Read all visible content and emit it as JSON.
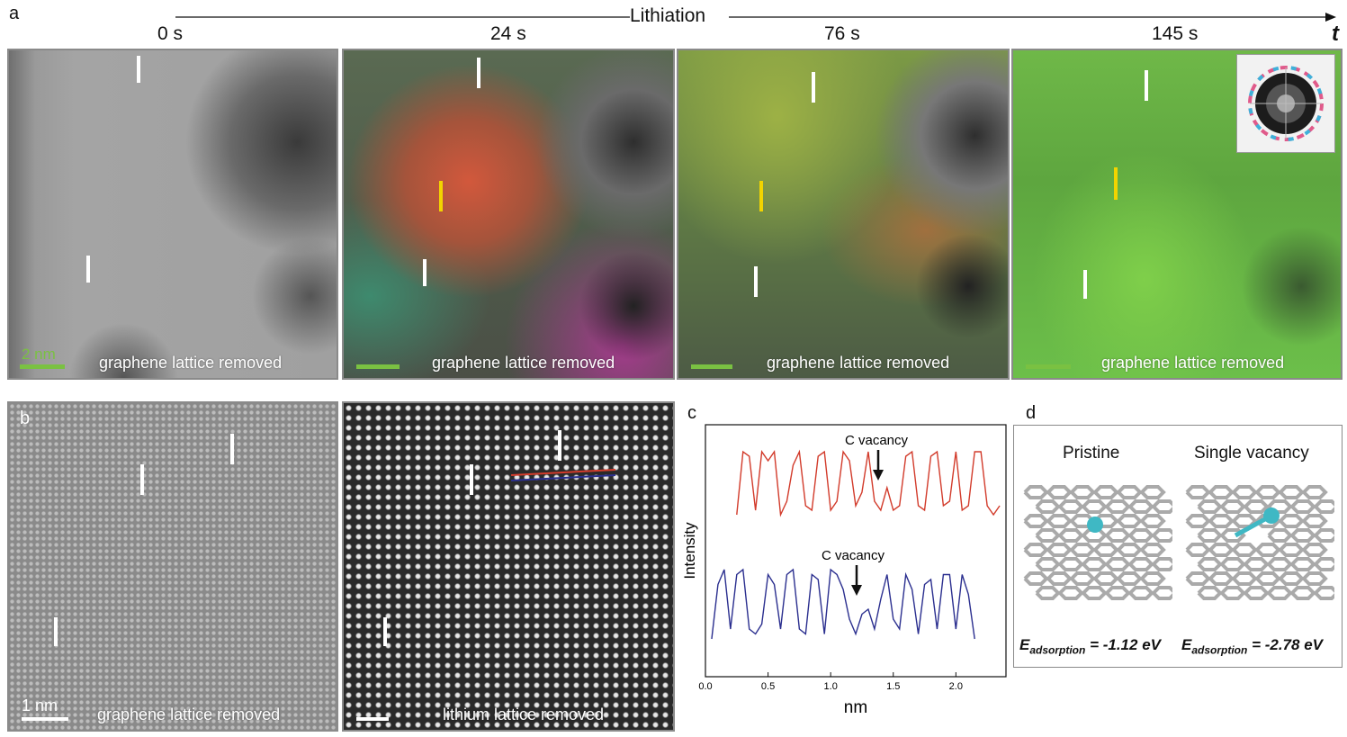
{
  "panel_a": {
    "label": "a",
    "timeline_label": "Lithiation",
    "axis_symbol": "t",
    "frames": [
      {
        "time": "0 s",
        "caption": "graphene lattice removed",
        "scale_label": "2 nm"
      },
      {
        "time": "24 s",
        "caption": "graphene lattice removed"
      },
      {
        "time": "76 s",
        "caption": "graphene lattice removed"
      },
      {
        "time": "145 s",
        "caption": "graphene lattice removed"
      }
    ]
  },
  "panel_b": {
    "label": "b",
    "left_caption": "graphene lattice removed",
    "right_caption": "lithium lattice removed",
    "scale_label": "1 nm"
  },
  "panel_c": {
    "label": "c",
    "ylabel": "Intensity",
    "xlabel": "nm",
    "annotation": "C vacancy"
  },
  "panel_d": {
    "label": "d",
    "left_title": "Pristine",
    "right_title": "Single vacancy",
    "left_energy_prefix": "E",
    "left_energy_sub": "adsorption",
    "left_energy_value": " = -1.12 eV",
    "right_energy_prefix": "E",
    "right_energy_sub": "adsorption",
    "right_energy_value": " = -2.78 eV",
    "atom_color": "#3fb8c4"
  },
  "chart_data": {
    "type": "line",
    "xlabel": "nm",
    "ylabel": "Intensity",
    "xlim": [
      0.0,
      2.4
    ],
    "xticks": [
      "0.0",
      "0.5",
      "1.0",
      "1.5",
      "2.0"
    ],
    "series": [
      {
        "color": "#d23b2b",
        "x": [
          0.25,
          0.3,
          0.35,
          0.4,
          0.45,
          0.5,
          0.55,
          0.6,
          0.65,
          0.7,
          0.75,
          0.8,
          0.85,
          0.9,
          0.95,
          1.0,
          1.05,
          1.1,
          1.15,
          1.2,
          1.25,
          1.3,
          1.35,
          1.4,
          1.45,
          1.5,
          1.55,
          1.6,
          1.65,
          1.7,
          1.75,
          1.8,
          1.85,
          1.9,
          1.95,
          2.0,
          2.05,
          2.1,
          2.15,
          2.2,
          2.25,
          2.3,
          2.35
        ],
        "y": [
          0.2,
          0.9,
          0.85,
          0.25,
          0.9,
          0.8,
          0.9,
          0.2,
          0.35,
          0.75,
          0.9,
          0.3,
          0.25,
          0.85,
          0.9,
          0.25,
          0.35,
          0.9,
          0.8,
          0.3,
          0.45,
          0.9,
          0.35,
          0.25,
          0.5,
          0.25,
          0.3,
          0.85,
          0.9,
          0.3,
          0.25,
          0.85,
          0.9,
          0.3,
          0.35,
          0.9,
          0.25,
          0.3,
          0.9,
          0.9,
          0.3,
          0.2,
          0.3
        ]
      },
      {
        "color": "#2b2f8f",
        "x": [
          0.05,
          0.1,
          0.15,
          0.2,
          0.25,
          0.3,
          0.35,
          0.4,
          0.45,
          0.5,
          0.55,
          0.6,
          0.65,
          0.7,
          0.75,
          0.8,
          0.85,
          0.9,
          0.95,
          1.0,
          1.05,
          1.1,
          1.15,
          1.2,
          1.25,
          1.3,
          1.35,
          1.4,
          1.45,
          1.5,
          1.55,
          1.6,
          1.65,
          1.7,
          1.75,
          1.8,
          1.85,
          1.9,
          1.95,
          2.0,
          2.05,
          2.1,
          2.15
        ],
        "y": [
          0.2,
          0.75,
          0.9,
          0.3,
          0.85,
          0.9,
          0.3,
          0.25,
          0.35,
          0.85,
          0.75,
          0.3,
          0.85,
          0.9,
          0.3,
          0.25,
          0.85,
          0.8,
          0.25,
          0.9,
          0.85,
          0.7,
          0.4,
          0.25,
          0.45,
          0.5,
          0.3,
          0.6,
          0.85,
          0.4,
          0.3,
          0.85,
          0.7,
          0.25,
          0.75,
          0.8,
          0.3,
          0.85,
          0.85,
          0.3,
          0.85,
          0.65,
          0.2
        ]
      }
    ]
  }
}
